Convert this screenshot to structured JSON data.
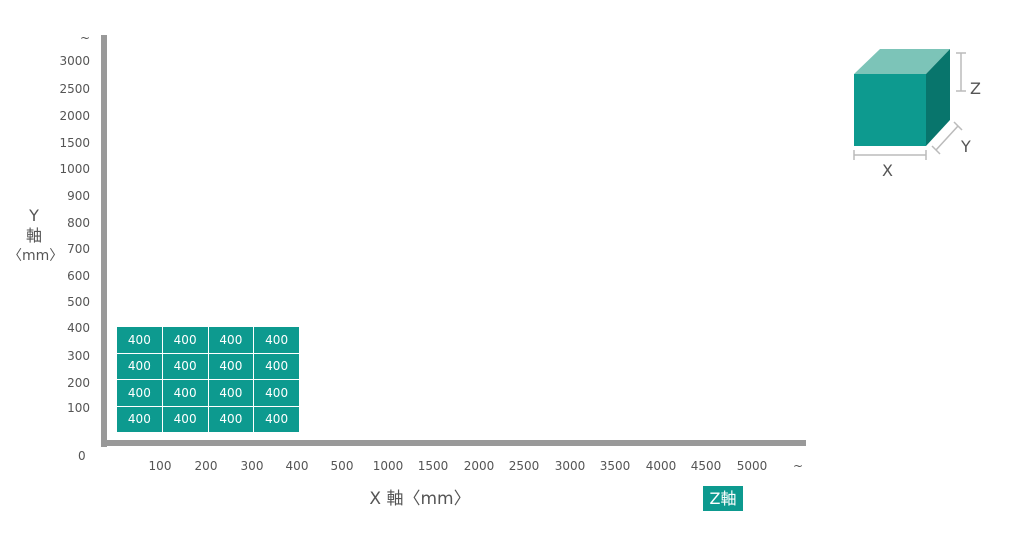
{
  "y_axis": {
    "label_line1": "Y",
    "label_line2": "軸",
    "label_line3": "〈mm〉",
    "ticks": [
      "~",
      "3000",
      "2500",
      "2000",
      "1500",
      "1000",
      "900",
      "800",
      "700",
      "600",
      "500",
      "400",
      "300",
      "200",
      "100"
    ]
  },
  "origin_label": "0",
  "x_axis": {
    "label": "X 軸〈mm〉",
    "ticks": [
      "100",
      "200",
      "300",
      "400",
      "500",
      "1000",
      "1500",
      "2000",
      "2500",
      "3000",
      "3500",
      "4000",
      "4500",
      "5000",
      "~"
    ]
  },
  "z_badge": "Z軸",
  "grid": {
    "rows": [
      [
        "400",
        "400",
        "400",
        "400"
      ],
      [
        "400",
        "400",
        "400",
        "400"
      ],
      [
        "400",
        "400",
        "400",
        "400"
      ],
      [
        "400",
        "400",
        "400",
        "400"
      ]
    ]
  },
  "cube": {
    "label_x": "X",
    "label_y": "Y",
    "label_z": "Z",
    "front_color": "#0d9a8f",
    "top_color": "#7cc4b8",
    "side_color": "#08756c"
  },
  "colors": {
    "accent": "#0d9a8f",
    "axis": "#999999"
  }
}
